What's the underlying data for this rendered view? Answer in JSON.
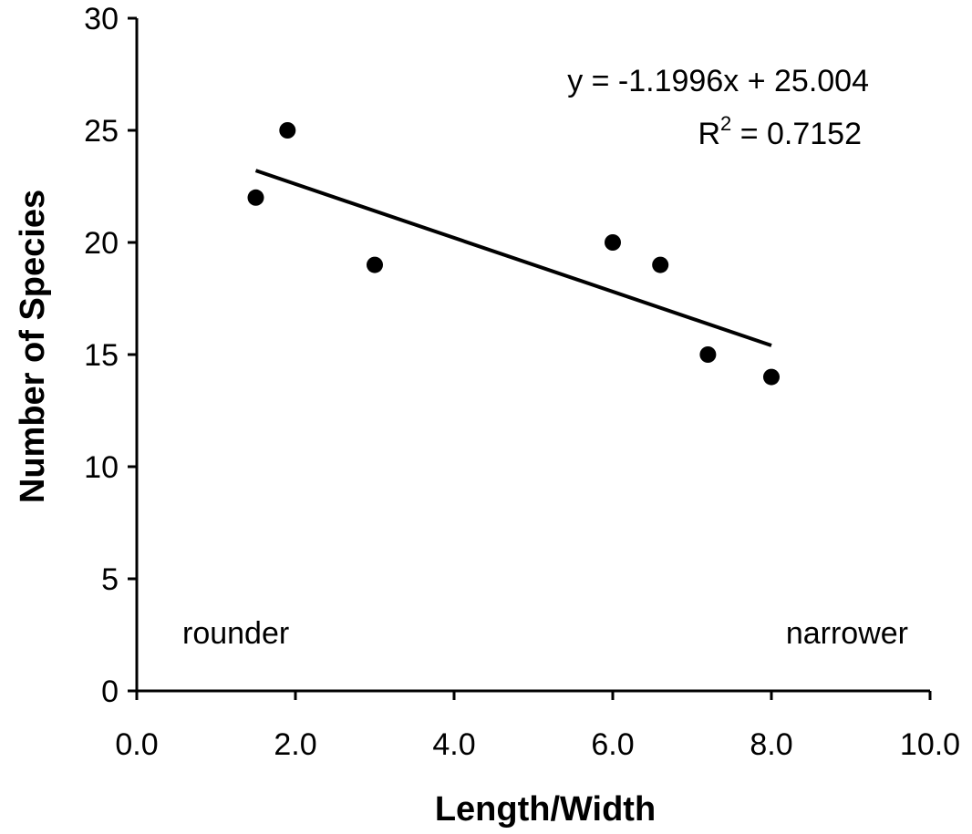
{
  "chart_data": {
    "type": "scatter",
    "xlabel": "Length/Width",
    "ylabel": "Number of Species",
    "xlim": [
      0,
      10
    ],
    "ylim": [
      0,
      30
    ],
    "x_ticks": [
      "0.0",
      "2.0",
      "4.0",
      "6.0",
      "8.0",
      "10.0"
    ],
    "y_ticks": [
      "0",
      "5",
      "10",
      "15",
      "20",
      "25",
      "30"
    ],
    "points": [
      {
        "x": 1.5,
        "y": 22
      },
      {
        "x": 1.9,
        "y": 25
      },
      {
        "x": 3.0,
        "y": 19
      },
      {
        "x": 6.0,
        "y": 20
      },
      {
        "x": 6.6,
        "y": 19
      },
      {
        "x": 7.2,
        "y": 15
      },
      {
        "x": 8.0,
        "y": 14
      }
    ],
    "trendline": {
      "type": "linear",
      "slope": -1.1996,
      "intercept": 25.004,
      "x_range": [
        1.5,
        8.0
      ],
      "equation": "y = -1.1996x + 25.004",
      "r2_prefix": "R",
      "r2_exponent": "2",
      "r2_value": " = 0.7152"
    },
    "annotations": {
      "left": "rounder",
      "right": "narrower"
    },
    "grid": false,
    "legend": "none"
  }
}
